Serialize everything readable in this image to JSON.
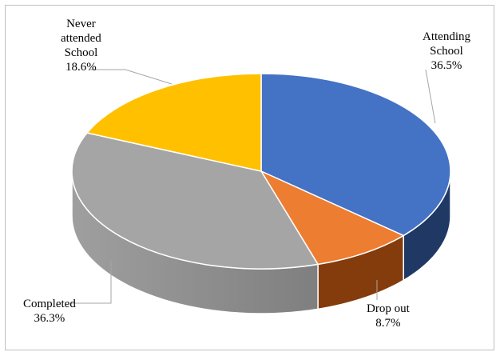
{
  "chart_data": {
    "type": "pie",
    "style": "3d",
    "slices": [
      {
        "label_lines": [
          "Attending",
          "School"
        ],
        "value": 36.5,
        "value_text": "36.5%",
        "color": "#4472c4",
        "side_color": "#1f3864"
      },
      {
        "label_lines": [
          "Drop out"
        ],
        "value": 8.7,
        "value_text": "8.7%",
        "color": "#ed7d31",
        "side_color": "#843c0c"
      },
      {
        "label_lines": [
          "Completed"
        ],
        "value": 36.3,
        "value_text": "36.3%",
        "color": "#a5a5a5",
        "side_color": "#7f7f7f"
      },
      {
        "label_lines": [
          "Never",
          "attended",
          "School"
        ],
        "value": 18.6,
        "value_text": "18.6%",
        "color": "#ffc000",
        "side_color": "#bf9000"
      }
    ]
  }
}
